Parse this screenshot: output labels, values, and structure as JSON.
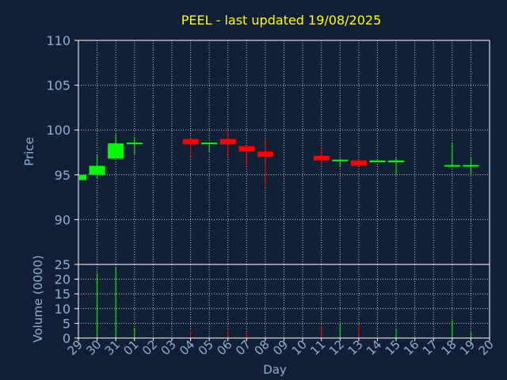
{
  "chart_data": {
    "title": "PEEL - last updated 19/08/2025",
    "colors": {
      "background": "#112034",
      "title": "#ffff00",
      "axis_text": "#8fb0d0",
      "grid": "#ffffff",
      "up": "#00ff00",
      "down": "#ff0000"
    },
    "price_panel": {
      "type": "candlestick",
      "ylabel": "Price",
      "ylim": [
        85,
        110
      ],
      "yticks": [
        "90",
        "95",
        "100",
        "105",
        "110"
      ],
      "grid": true
    },
    "volume_panel": {
      "type": "bar",
      "ylabel": "Volume (0000)",
      "ylim": [
        0,
        25
      ],
      "yticks": [
        "0",
        "5",
        "10",
        "15",
        "20",
        "25"
      ],
      "grid": true
    },
    "xlabel": "Day",
    "days": [
      "29",
      "30",
      "31",
      "01",
      "02",
      "03",
      "04",
      "05",
      "06",
      "07",
      "08",
      "09",
      "10",
      "11",
      "12",
      "13",
      "14",
      "15",
      "16",
      "17",
      "18",
      "19",
      "20"
    ],
    "candles": [
      {
        "day": "29",
        "open": 94.4,
        "high": 95.0,
        "low": 94.4,
        "close": 95.0
      },
      {
        "day": "30",
        "open": 95.0,
        "high": 97.2,
        "low": 94.6,
        "close": 96.0
      },
      {
        "day": "31",
        "open": 96.8,
        "high": 99.5,
        "low": 96.8,
        "close": 98.5
      },
      {
        "day": "01",
        "open": 98.4,
        "high": 99.2,
        "low": 97.3,
        "close": 98.5
      },
      {
        "day": "04",
        "open": 99.0,
        "high": 99.0,
        "low": 97.0,
        "close": 98.4
      },
      {
        "day": "05",
        "open": 98.4,
        "high": 98.5,
        "low": 97.5,
        "close": 98.5
      },
      {
        "day": "06",
        "open": 99.0,
        "high": 100.0,
        "low": 97.1,
        "close": 98.4
      },
      {
        "day": "07",
        "open": 98.2,
        "high": 98.2,
        "low": 96.0,
        "close": 97.6
      },
      {
        "day": "08",
        "open": 97.6,
        "high": 99.0,
        "low": 93.6,
        "close": 97.0
      },
      {
        "day": "11",
        "open": 97.1,
        "high": 98.0,
        "low": 96.0,
        "close": 96.6
      },
      {
        "day": "12",
        "open": 96.5,
        "high": 96.8,
        "low": 95.9,
        "close": 96.6
      },
      {
        "day": "13",
        "open": 96.6,
        "high": 96.6,
        "low": 95.9,
        "close": 96.0
      },
      {
        "day": "14",
        "open": 96.4,
        "high": 96.6,
        "low": 96.4,
        "close": 96.6
      },
      {
        "day": "15",
        "open": 96.4,
        "high": 96.9,
        "low": 95.0,
        "close": 96.6
      },
      {
        "day": "18",
        "open": 96.0,
        "high": 98.6,
        "low": 96.0,
        "close": 96.0
      },
      {
        "day": "19",
        "open": 95.9,
        "high": 97.0,
        "low": 95.0,
        "close": 96.0
      }
    ],
    "volumes": [
      {
        "day": "30",
        "value": 22.0,
        "dir": "up"
      },
      {
        "day": "31",
        "value": 24.0,
        "dir": "up"
      },
      {
        "day": "01",
        "value": 3.5,
        "dir": "up"
      },
      {
        "day": "04",
        "value": 2.5,
        "dir": "down"
      },
      {
        "day": "06",
        "value": 2.5,
        "dir": "down"
      },
      {
        "day": "07",
        "value": 2.0,
        "dir": "down"
      },
      {
        "day": "08",
        "value": 0.5,
        "dir": "down"
      },
      {
        "day": "11",
        "value": 4.0,
        "dir": "down"
      },
      {
        "day": "12",
        "value": 5.0,
        "dir": "up"
      },
      {
        "day": "13",
        "value": 4.5,
        "dir": "down"
      },
      {
        "day": "15",
        "value": 3.0,
        "dir": "up"
      },
      {
        "day": "18",
        "value": 6.0,
        "dir": "up"
      },
      {
        "day": "19",
        "value": 2.0,
        "dir": "up"
      }
    ]
  }
}
